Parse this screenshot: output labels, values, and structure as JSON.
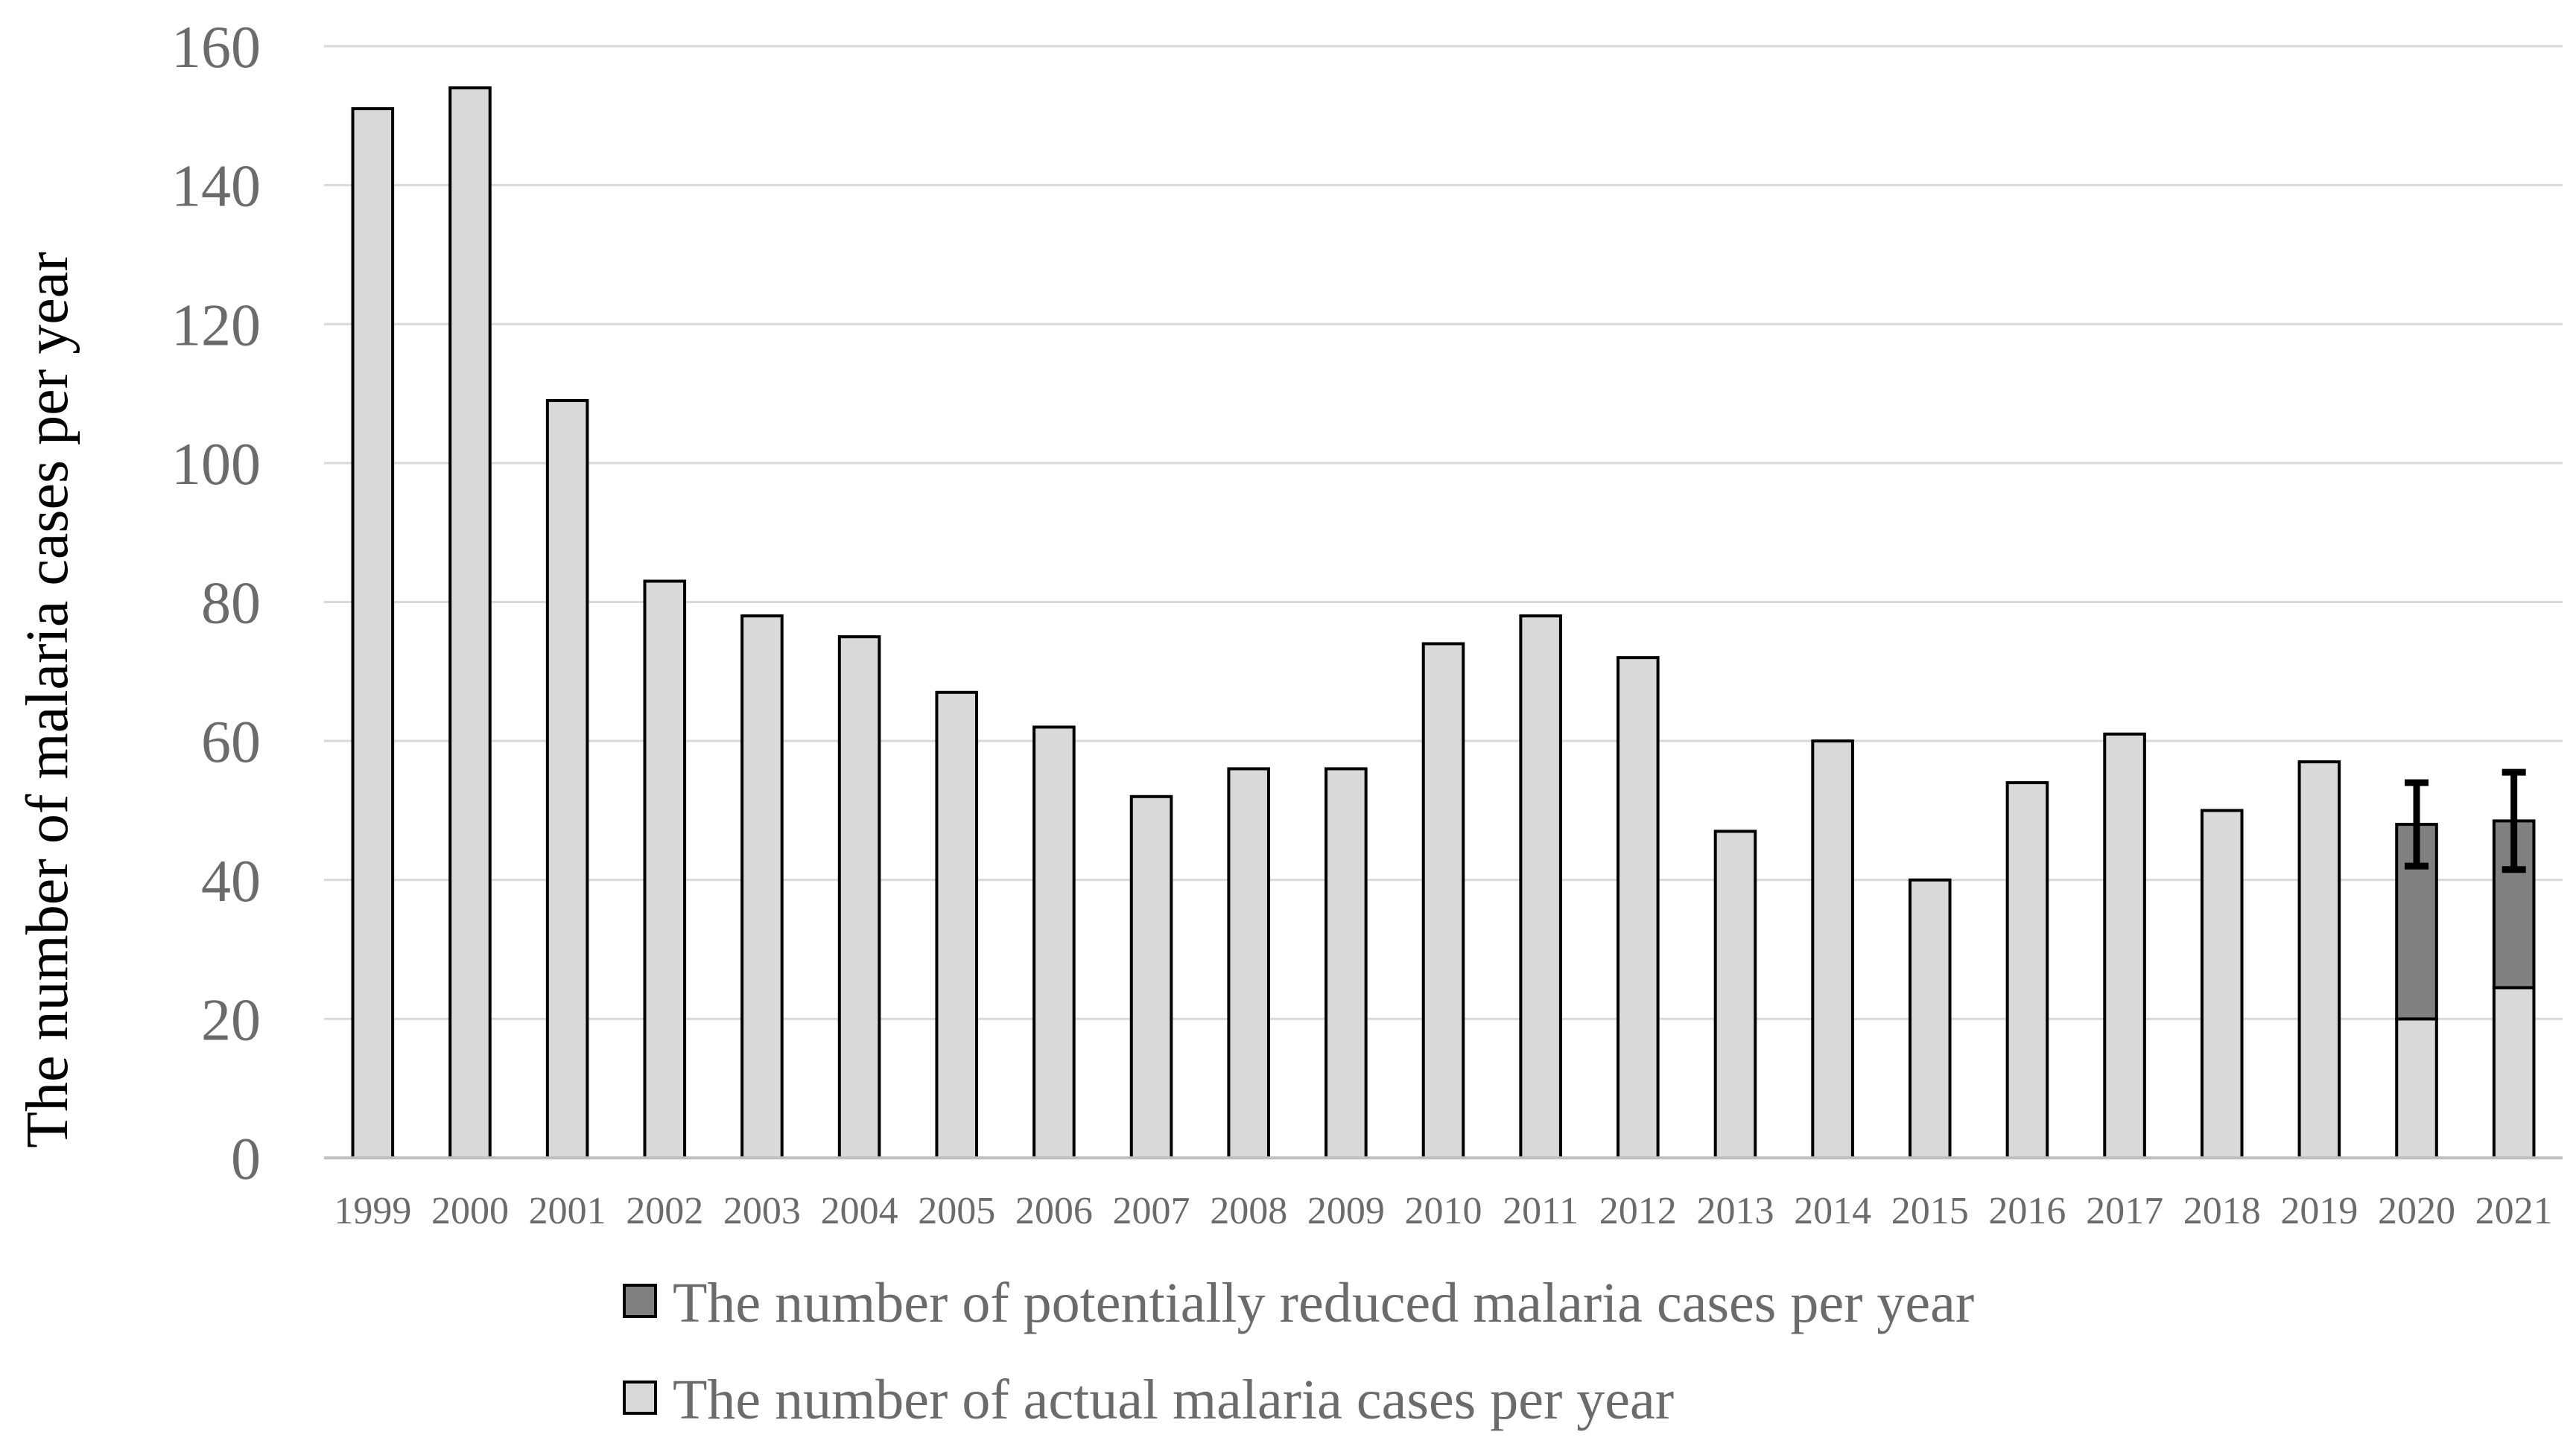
{
  "chart_data": {
    "type": "bar",
    "stacked": true,
    "title": "",
    "xlabel": "",
    "ylabel": "The number of malaria cases per year",
    "ylim": [
      0,
      160
    ],
    "yticks": [
      0,
      20,
      40,
      60,
      80,
      100,
      120,
      140,
      160
    ],
    "grid": true,
    "legend_position": "bottom",
    "categories": [
      "1999",
      "2000",
      "2001",
      "2002",
      "2003",
      "2004",
      "2005",
      "2006",
      "2007",
      "2008",
      "2009",
      "2010",
      "2011",
      "2012",
      "2013",
      "2014",
      "2015",
      "2016",
      "2017",
      "2018",
      "2019",
      "2020",
      "2021"
    ],
    "series": [
      {
        "name": "The number of actual malaria cases per year",
        "color": "#d9d9d9",
        "values": [
          151,
          154,
          109,
          83,
          78,
          75,
          67,
          62,
          52,
          56,
          56,
          74,
          78,
          72,
          47,
          60,
          40,
          54,
          61,
          50,
          57,
          20,
          24.5
        ]
      },
      {
        "name": "The number of potentially reduced malaria cases per year",
        "color": "#808080",
        "values": [
          0,
          0,
          0,
          0,
          0,
          0,
          0,
          0,
          0,
          0,
          0,
          0,
          0,
          0,
          0,
          0,
          0,
          0,
          0,
          0,
          0,
          28,
          24
        ]
      }
    ],
    "error_bars": [
      {
        "category": "2020",
        "low": 42,
        "high": 54
      },
      {
        "category": "2021",
        "low": 41.5,
        "high": 55.5
      }
    ],
    "legend": [
      {
        "label": "The number of potentially reduced malaria cases per year",
        "color": "#808080"
      },
      {
        "label": "The number of actual malaria cases per year",
        "color": "#d9d9d9"
      }
    ],
    "colors": {
      "grid": "#d9d9d9",
      "axis": "#bfbfbf",
      "bar_outline": "#000000",
      "error_bar": "#000000"
    }
  }
}
